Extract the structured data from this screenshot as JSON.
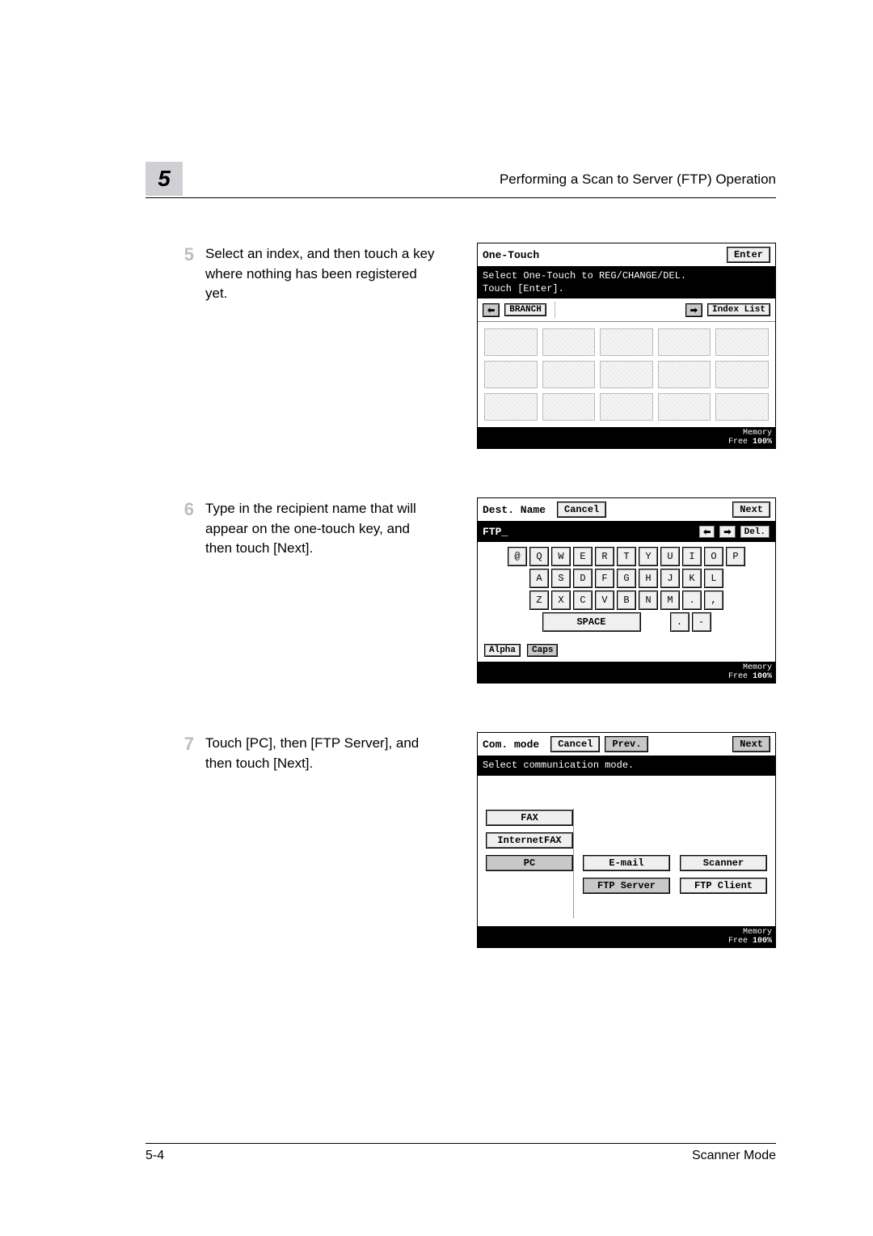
{
  "chapter_number": "5",
  "page_title": "Performing a Scan to Server (FTP) Operation",
  "footer": {
    "left": "5-4",
    "right": "Scanner Mode"
  },
  "steps": [
    {
      "num": "5",
      "text": "Select an index, and then touch a key where nothing has been registered yet."
    },
    {
      "num": "6",
      "text": "Type in the recipient name that will appear on the one-touch key, and then touch [Next]."
    },
    {
      "num": "7",
      "text": "Touch [PC], then [FTP Server], and then touch [Next]."
    }
  ],
  "panel1": {
    "title": "One-Touch",
    "enter": "Enter",
    "instruction1": "Select One-Touch to REG/CHANGE/DEL.",
    "instruction2": "Touch [Enter].",
    "left_arrow": "⬅",
    "branch": "BRANCH",
    "right_arrow": "➡",
    "indexlist": "Index List",
    "memory": "Memory",
    "free": "Free",
    "percent": "100%"
  },
  "panel2": {
    "title": "Dest. Name",
    "cancel": "Cancel",
    "next": "Next",
    "input_value": "FTP_",
    "left": "⬅",
    "right": "➡",
    "del": "Del.",
    "rows": [
      [
        "@",
        "Q",
        "W",
        "E",
        "R",
        "T",
        "Y",
        "U",
        "I",
        "O",
        "P"
      ],
      [
        "A",
        "S",
        "D",
        "F",
        "G",
        "H",
        "J",
        "K",
        "L"
      ],
      [
        "Z",
        "X",
        "C",
        "V",
        "B",
        "N",
        "M",
        ".",
        ","
      ]
    ],
    "space": "SPACE",
    "dot": ".",
    "dash": "-",
    "alpha": "Alpha",
    "caps": "Caps",
    "memory": "Memory",
    "free": "Free",
    "percent": "100%"
  },
  "panel3": {
    "title": "Com. mode",
    "cancel": "Cancel",
    "prev": "Prev.",
    "next": "Next",
    "instruction": "Select communication mode.",
    "fax": "FAX",
    "ifax": "InternetFAX",
    "pc": "PC",
    "email": "E-mail",
    "scanner": "Scanner",
    "ftpserver": "FTP Server",
    "ftpclient": "FTP Client",
    "memory": "Memory",
    "free": "Free",
    "percent": "100%"
  },
  "style": {
    "chapter_bg": "#d0cfd4",
    "step_num_color": "#bdbdbd"
  }
}
